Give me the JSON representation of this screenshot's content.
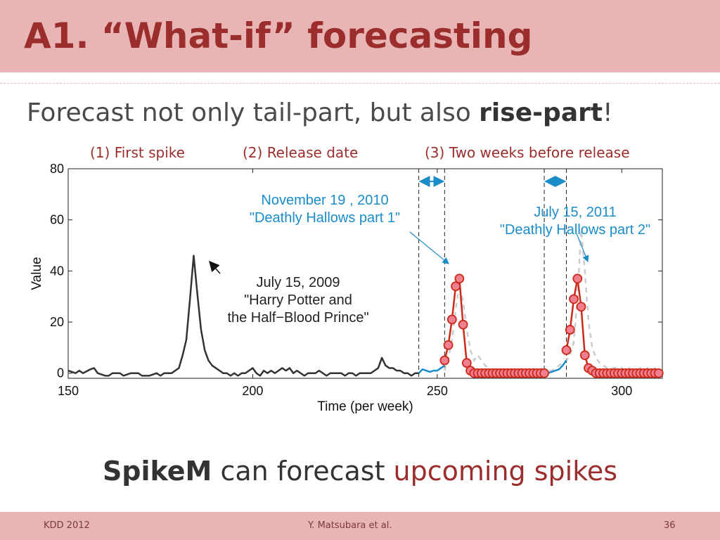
{
  "slide": {
    "title": "A1. “What-if” forecasting",
    "subtitle_pre": "Forecast not only tail-part, but also ",
    "subtitle_bold": "rise-part",
    "subtitle_post": "!",
    "phases": [
      "(1) First spike",
      "(2) Release date",
      "(3) Two weeks before release"
    ],
    "bottom_bold": "SpikeM",
    "bottom_mid": " can forecast ",
    "bottom_highlight": "upcoming spikes"
  },
  "footer": {
    "left": "KDD 2012",
    "center": "Y. Matsubara et al.",
    "right": "36"
  },
  "chart_data": {
    "type": "line",
    "xlabel": "Time (per week)",
    "ylabel": "Value",
    "xlim": [
      150,
      311
    ],
    "ylim": [
      -2,
      80
    ],
    "xticks": [
      150,
      200,
      250,
      300
    ],
    "yticks": [
      0,
      20,
      40,
      60,
      80
    ],
    "vlines": [
      245,
      252,
      279,
      285
    ],
    "arrows": [
      [
        245,
        252
      ],
      [
        279,
        285
      ]
    ],
    "annotations": [
      {
        "lines": [
          "July 15, 2009",
          "\"Harry Potter and",
          "the Half−Blood Prince\""
        ],
        "color": "#222222"
      },
      {
        "lines": [
          "November 19 , 2010",
          "\"Deathly Hallows part 1\""
        ],
        "color": "#1a8cc8"
      },
      {
        "lines": [
          "July 15, 2011",
          "\"Deathly Hallows part 2\""
        ],
        "color": "#1a8cc8"
      }
    ],
    "series": [
      {
        "style": "observed",
        "color": "#333333",
        "points": [
          [
            150,
            1
          ],
          [
            152,
            0
          ],
          [
            153,
            1
          ],
          [
            154,
            0
          ],
          [
            156,
            1.5
          ],
          [
            157,
            2
          ],
          [
            158,
            0
          ],
          [
            160,
            -1
          ],
          [
            161,
            -1
          ],
          [
            162,
            0
          ],
          [
            164,
            0
          ],
          [
            165,
            -1
          ],
          [
            167,
            0
          ],
          [
            169,
            0
          ],
          [
            170,
            -1
          ],
          [
            172,
            -1
          ],
          [
            174,
            0
          ],
          [
            175,
            -1
          ],
          [
            176,
            0
          ],
          [
            178,
            0
          ],
          [
            179,
            1
          ],
          [
            180,
            2
          ],
          [
            181,
            7
          ],
          [
            182,
            13
          ],
          [
            183,
            29
          ],
          [
            184,
            46
          ],
          [
            185,
            31
          ],
          [
            186,
            17
          ],
          [
            187,
            9
          ],
          [
            188,
            5
          ],
          [
            189,
            3
          ],
          [
            190,
            2
          ],
          [
            191,
            1
          ],
          [
            192,
            0
          ],
          [
            193,
            0
          ],
          [
            194,
            -1
          ],
          [
            195,
            0
          ],
          [
            196,
            -1
          ],
          [
            197,
            0
          ],
          [
            198,
            0
          ],
          [
            199,
            1
          ],
          [
            200,
            2
          ],
          [
            201,
            0
          ],
          [
            202,
            -1
          ],
          [
            203,
            1
          ],
          [
            204,
            0
          ],
          [
            205,
            1
          ],
          [
            206,
            0
          ],
          [
            207,
            1
          ],
          [
            208,
            2
          ],
          [
            209,
            1
          ],
          [
            210,
            2
          ],
          [
            211,
            0
          ],
          [
            212,
            1
          ],
          [
            213,
            0
          ],
          [
            214,
            -1
          ],
          [
            215,
            0
          ],
          [
            216,
            0
          ],
          [
            217,
            0
          ],
          [
            218,
            1
          ],
          [
            219,
            0
          ],
          [
            220,
            -1
          ],
          [
            221,
            0
          ],
          [
            222,
            0
          ],
          [
            223,
            0
          ],
          [
            224,
            0
          ],
          [
            225,
            -1
          ],
          [
            226,
            0
          ],
          [
            227,
            0
          ],
          [
            228,
            -1
          ],
          [
            229,
            0
          ],
          [
            230,
            0
          ],
          [
            231,
            0
          ],
          [
            232,
            0
          ],
          [
            233,
            1
          ],
          [
            234,
            2
          ],
          [
            235,
            6
          ],
          [
            236,
            3
          ],
          [
            237,
            2
          ],
          [
            238,
            2
          ],
          [
            239,
            1
          ],
          [
            240,
            1
          ],
          [
            241,
            0
          ],
          [
            242,
            0
          ],
          [
            243,
            -1
          ],
          [
            244,
            0
          ],
          [
            245,
            0
          ]
        ]
      },
      {
        "style": "dashed",
        "color": "#cccccc",
        "points": [
          [
            252,
            1
          ],
          [
            253,
            6
          ],
          [
            254,
            13
          ],
          [
            255,
            25
          ],
          [
            256,
            35
          ],
          [
            257,
            28
          ],
          [
            258,
            17
          ],
          [
            259,
            9
          ],
          [
            260,
            5
          ],
          [
            261,
            7
          ],
          [
            262,
            5
          ],
          [
            263,
            3
          ],
          [
            264,
            2
          ],
          [
            265,
            1
          ],
          [
            266,
            1
          ],
          [
            267,
            1
          ],
          [
            268,
            1
          ],
          [
            269,
            1
          ],
          [
            270,
            1
          ],
          [
            271,
            1
          ],
          [
            272,
            1
          ],
          [
            273,
            2
          ],
          [
            274,
            1
          ],
          [
            275,
            1
          ],
          [
            276,
            2
          ],
          [
            277,
            1
          ],
          [
            278,
            2
          ],
          [
            279,
            1
          ],
          [
            280,
            1
          ],
          [
            281,
            1
          ],
          [
            282,
            2
          ],
          [
            283,
            3
          ],
          [
            284,
            4
          ],
          [
            285,
            5
          ],
          [
            286,
            7
          ],
          [
            287,
            12
          ],
          [
            288,
            30
          ],
          [
            289,
            56
          ],
          [
            290,
            40
          ],
          [
            291,
            20
          ],
          [
            292,
            10
          ],
          [
            293,
            6
          ],
          [
            294,
            4
          ],
          [
            295,
            3
          ],
          [
            296,
            2
          ],
          [
            297,
            2
          ],
          [
            298,
            2
          ],
          [
            299,
            2
          ],
          [
            300,
            2
          ],
          [
            301,
            1
          ],
          [
            302,
            2
          ],
          [
            303,
            1
          ],
          [
            304,
            1
          ],
          [
            305,
            2
          ],
          [
            306,
            1
          ],
          [
            307,
            2
          ],
          [
            308,
            1
          ],
          [
            309,
            2
          ],
          [
            310,
            1
          ]
        ]
      },
      {
        "style": "blue",
        "color": "#1a8cc8",
        "points": [
          [
            245,
            0
          ],
          [
            246,
            1.5
          ],
          [
            247,
            1
          ],
          [
            248,
            0.5
          ],
          [
            249,
            1
          ],
          [
            250,
            1
          ],
          [
            251,
            2
          ],
          [
            252,
            3
          ]
        ]
      },
      {
        "style": "blue",
        "color": "#1a8cc8",
        "points": [
          [
            279,
            0
          ],
          [
            280,
            0
          ],
          [
            281,
            0.5
          ],
          [
            282,
            1
          ],
          [
            283,
            1.5
          ],
          [
            284,
            3
          ],
          [
            285,
            5
          ]
        ]
      },
      {
        "style": "forecast",
        "color": "#cc2a1a",
        "marker_fill": "#f08090",
        "points": [
          [
            252,
            5
          ],
          [
            253,
            11
          ],
          [
            254,
            21
          ],
          [
            255,
            34
          ],
          [
            256,
            37
          ],
          [
            257,
            19
          ],
          [
            258,
            4
          ],
          [
            259,
            1
          ],
          [
            260,
            0
          ],
          [
            261,
            0
          ],
          [
            262,
            0
          ],
          [
            263,
            0
          ],
          [
            264,
            0
          ],
          [
            265,
            0
          ],
          [
            266,
            0
          ],
          [
            267,
            0
          ],
          [
            268,
            0
          ],
          [
            269,
            0
          ],
          [
            270,
            0
          ],
          [
            271,
            0
          ],
          [
            272,
            0
          ],
          [
            273,
            0
          ],
          [
            274,
            0
          ],
          [
            275,
            0
          ],
          [
            276,
            0
          ],
          [
            277,
            0
          ],
          [
            278,
            0
          ],
          [
            279,
            0
          ]
        ]
      },
      {
        "style": "forecast",
        "color": "#cc2a1a",
        "marker_fill": "#f08090",
        "points": [
          [
            285,
            9
          ],
          [
            286,
            17
          ],
          [
            287,
            29
          ],
          [
            288,
            37
          ],
          [
            289,
            26
          ],
          [
            290,
            7
          ],
          [
            291,
            2
          ],
          [
            292,
            1
          ],
          [
            293,
            0
          ],
          [
            294,
            0
          ],
          [
            295,
            0
          ],
          [
            296,
            0
          ],
          [
            297,
            0
          ],
          [
            298,
            0
          ],
          [
            299,
            0
          ],
          [
            300,
            0
          ],
          [
            301,
            0
          ],
          [
            302,
            0
          ],
          [
            303,
            0
          ],
          [
            304,
            0
          ],
          [
            305,
            0
          ],
          [
            306,
            0
          ],
          [
            307,
            0
          ],
          [
            308,
            0
          ],
          [
            309,
            0
          ],
          [
            310,
            0
          ]
        ]
      }
    ]
  }
}
